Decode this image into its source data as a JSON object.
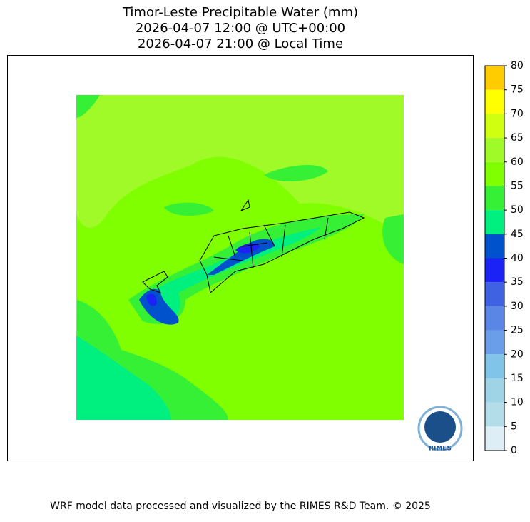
{
  "header": {
    "title": "Timor-Leste Precipitable Water (mm)",
    "time_utc": "2026-04-07 12:00 @ UTC+00:00",
    "time_local": "2026-04-07 21:00 @ Local Time"
  },
  "colorbar": {
    "levels": [
      0,
      5,
      10,
      15,
      20,
      25,
      30,
      35,
      40,
      45,
      50,
      55,
      60,
      65,
      70,
      75,
      80
    ],
    "colors": [
      "#deeef6",
      "#b3dde9",
      "#9fd3e6",
      "#80c4ea",
      "#6a9ee8",
      "#5a86e6",
      "#3f62e3",
      "#1a22f5",
      "#0052cc",
      "#00f080",
      "#36f036",
      "#80ff00",
      "#a0fa28",
      "#d0ff10",
      "#ffff00",
      "#ffcc00"
    ]
  },
  "logo": {
    "text": "RIMES"
  },
  "footer": "WRF model data processed and visualized by the RIMES R&D Team. © 2025"
}
